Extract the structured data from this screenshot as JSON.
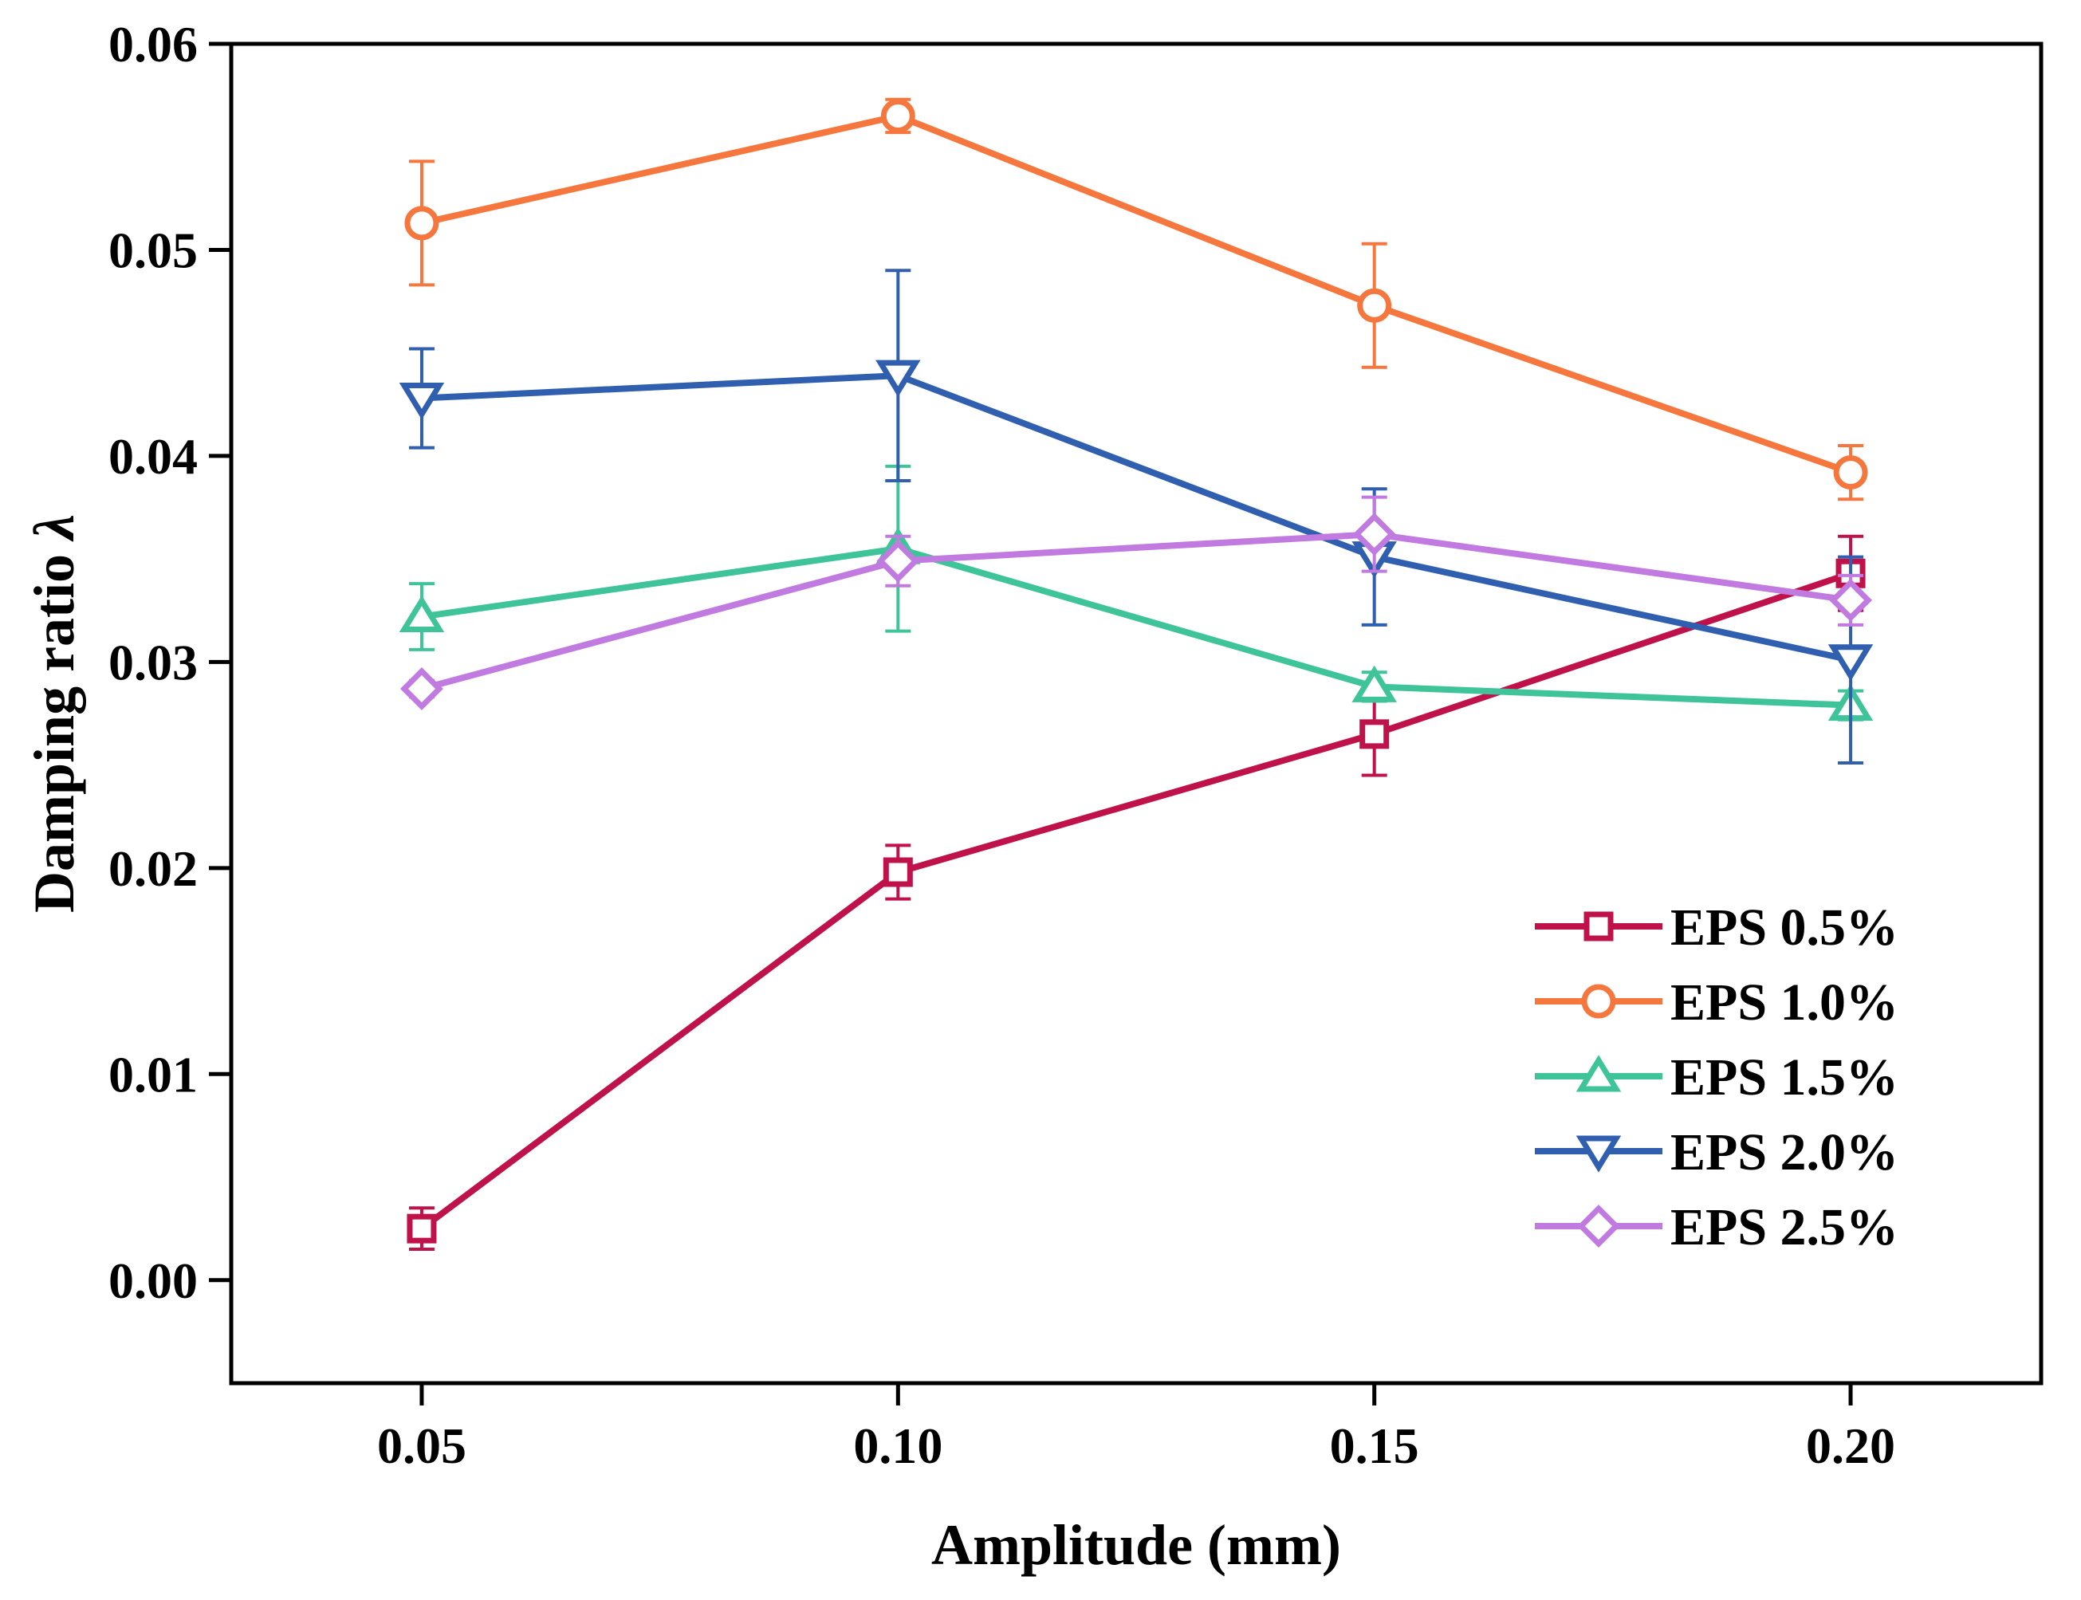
{
  "chart_data": {
    "type": "line",
    "title": "",
    "xlabel": "Amplitude (mm)",
    "ylabel_text": "Damping ratio ",
    "ylabel_symbol": "λ",
    "xlim": [
      0.03,
      0.22
    ],
    "ylim": [
      -0.005,
      0.06
    ],
    "x_ticks": [
      {
        "value": 0.05,
        "label": "0.05"
      },
      {
        "value": 0.1,
        "label": "0.10"
      },
      {
        "value": 0.15,
        "label": "0.15"
      },
      {
        "value": 0.2,
        "label": "0.20"
      }
    ],
    "y_ticks": [
      {
        "value": 0.0,
        "label": "0.00"
      },
      {
        "value": 0.01,
        "label": "0.01"
      },
      {
        "value": 0.02,
        "label": "0.02"
      },
      {
        "value": 0.03,
        "label": "0.03"
      },
      {
        "value": 0.04,
        "label": "0.04"
      },
      {
        "value": 0.05,
        "label": "0.05"
      },
      {
        "value": 0.06,
        "label": "0.06"
      }
    ],
    "grid": false,
    "legend_position": "bottom-right",
    "x": [
      0.05,
      0.1,
      0.15,
      0.2
    ],
    "series": [
      {
        "name": "EPS 0.5%",
        "marker": "square",
        "color": "#c0124a",
        "values": [
          0.0025,
          0.0198,
          0.0265,
          0.0343
        ],
        "errors": [
          0.001,
          0.0013,
          0.002,
          0.0018
        ]
      },
      {
        "name": "EPS 1.0%",
        "marker": "circle",
        "color": "#f5773e",
        "values": [
          0.0513,
          0.0565,
          0.0473,
          0.0392
        ],
        "errors": [
          0.003,
          0.0008,
          0.003,
          0.0013
        ]
      },
      {
        "name": "EPS 1.5%",
        "marker": "triangle-up",
        "color": "#3fc49a",
        "values": [
          0.0322,
          0.0355,
          0.0288,
          0.0279
        ],
        "errors": [
          0.0016,
          0.004,
          0.0007,
          0.0007
        ]
      },
      {
        "name": "EPS 2.0%",
        "marker": "triangle-down",
        "color": "#2f5fae",
        "values": [
          0.0428,
          0.0439,
          0.0351,
          0.0301
        ],
        "errors": [
          0.0024,
          0.0051,
          0.0033,
          0.005
        ]
      },
      {
        "name": "EPS 2.5%",
        "marker": "diamond",
        "color": "#c07ae0",
        "values": [
          0.0287,
          0.0349,
          0.0362,
          0.033
        ],
        "errors": [
          0.0004,
          0.0012,
          0.0018,
          0.0012
        ]
      }
    ]
  }
}
